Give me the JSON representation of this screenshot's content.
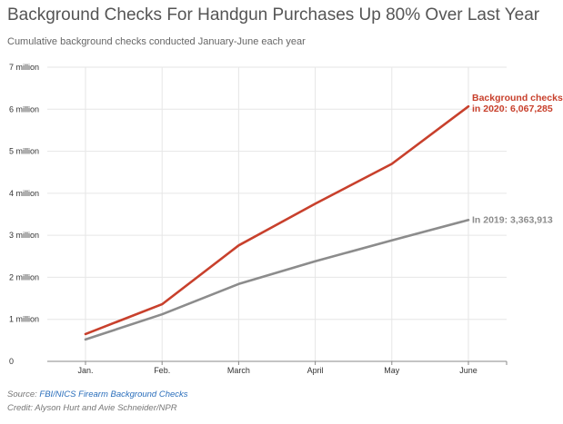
{
  "header": {
    "title": "Background Checks For Handgun Purchases Up 80% Over Last Year",
    "subtitle": "Cumulative background checks conducted January-June each year"
  },
  "chart_data": {
    "type": "line",
    "title": "Background Checks For Handgun Purchases Up 80% Over Last Year",
    "subtitle": "Cumulative background checks conducted January-June each year",
    "categories": [
      "Jan.",
      "Feb.",
      "March",
      "April",
      "May",
      "June"
    ],
    "y_ticks": [
      "0",
      "1 million",
      "2 million",
      "3 million",
      "4 million",
      "5 million",
      "6 million",
      "7 million"
    ],
    "ylim": [
      0,
      7000000
    ],
    "grid": true,
    "series": [
      {
        "name": "2020",
        "color": "#c8402c",
        "values": [
          650000,
          1360000,
          2760000,
          3750000,
          4700000,
          6067285
        ],
        "label_lines": [
          "Background checks",
          "in 2020: 6,067,285"
        ]
      },
      {
        "name": "2019",
        "color": "#8c8c8c",
        "values": [
          520000,
          1120000,
          1840000,
          2380000,
          2880000,
          3363913
        ],
        "label_lines": [
          "In 2019: 3,363,913"
        ]
      }
    ]
  },
  "footer": {
    "source_prefix": "Source: ",
    "source_link": "FBI/NICS Firearm Background Checks",
    "credit": "Credit: Alyson Hurt and Avie Schneider/NPR"
  }
}
